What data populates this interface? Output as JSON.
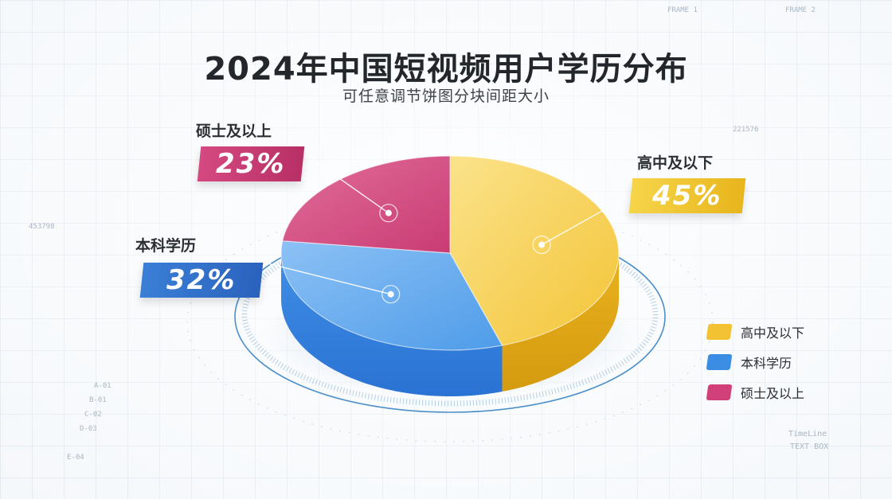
{
  "chart_data": {
    "type": "pie",
    "title": "2024年中国短视频用户学历分布",
    "subtitle": "可任意调节饼图分块间距大小",
    "slices": [
      {
        "label": "高中及以下",
        "value": 45,
        "display": "45%",
        "color": "#f2c232"
      },
      {
        "label": "本科学历",
        "value": 32,
        "display": "32%",
        "color": "#3b8de4"
      },
      {
        "label": "硕士及以上",
        "value": 23,
        "display": "23%",
        "color": "#d2407a"
      }
    ],
    "legend": [
      "高中及以下",
      "本科学历",
      "硕士及以上"
    ],
    "legend_position": "right"
  },
  "decor": {
    "rows": [
      "A-01",
      "B-01",
      "C-02",
      "D-03",
      "E-04"
    ],
    "timeline": "TimeLine",
    "textbox": "TEXT BOX",
    "frame1": "FRAME 1",
    "frame2": "FRAME 2",
    "code1": "453798",
    "code2": "221576"
  }
}
